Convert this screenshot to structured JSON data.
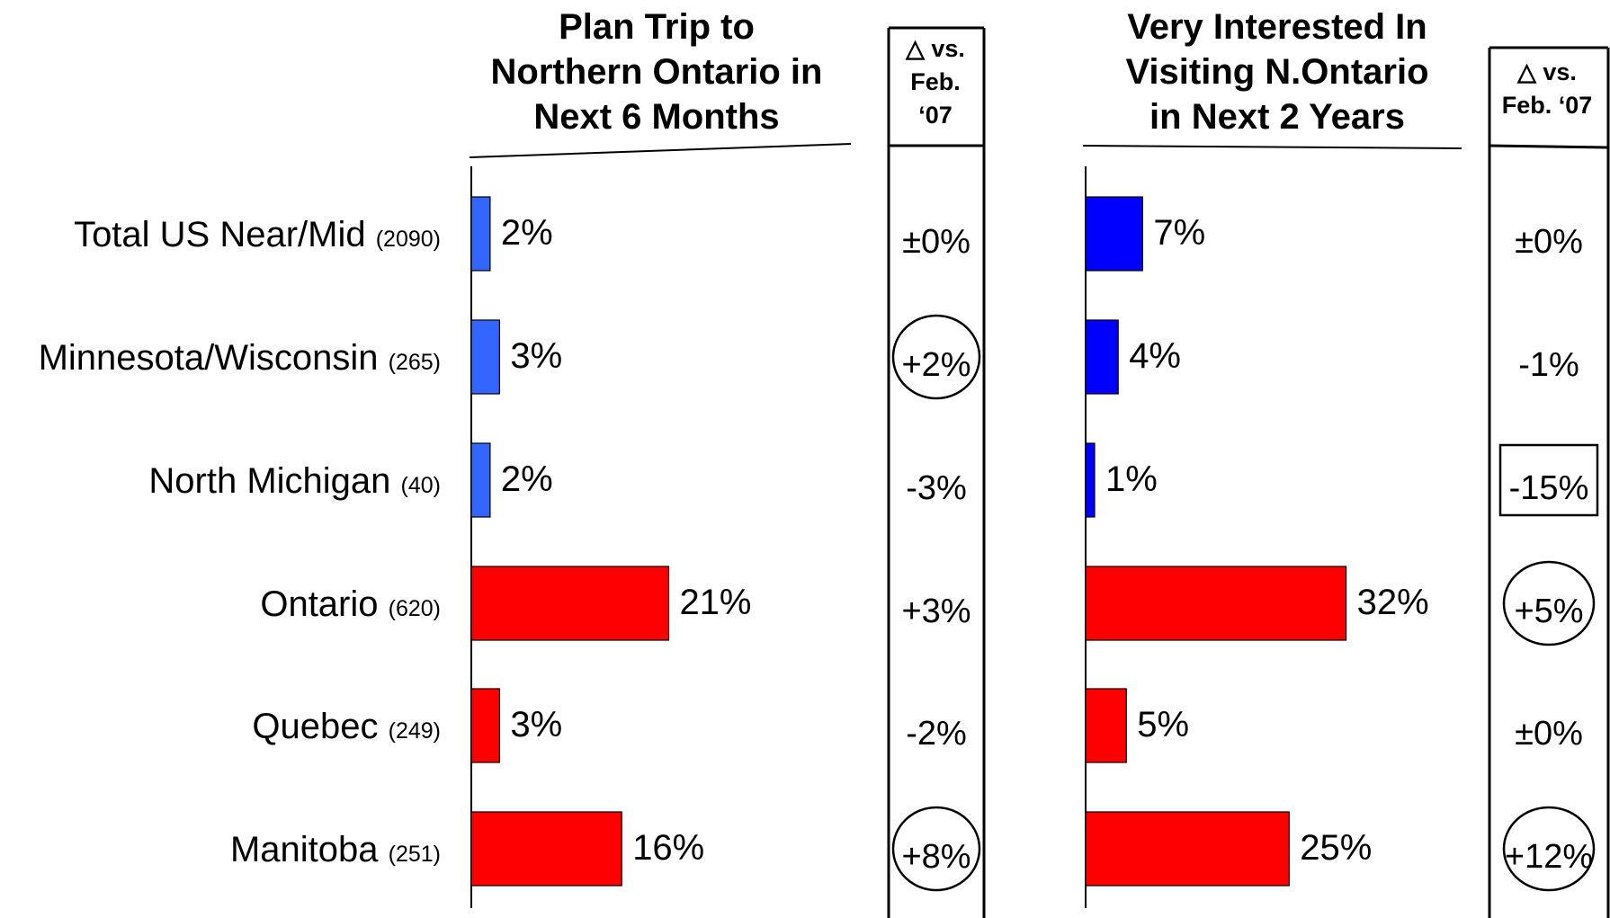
{
  "left_panel": {
    "title_lines": [
      "Plan Trip to",
      "Northern Ontario in",
      "Next 6 Months"
    ],
    "delta_header_lines": [
      "△ vs.",
      "Feb.",
      "‘07"
    ]
  },
  "right_panel": {
    "title_lines": [
      "Very Interested In",
      "Visiting N.Ontario",
      "in Next 2 Years"
    ],
    "delta_header_lines": [
      "△ vs.",
      "Feb. ‘07"
    ]
  },
  "colors": {
    "us_plan": "#3366ff",
    "us_interest": "#0000ff",
    "canada": "#ff0000"
  },
  "chart_data": [
    {
      "type": "bar",
      "orientation": "horizontal",
      "title": "Plan Trip to Northern Ontario in Next 6 Months",
      "categories": [
        "Total US Near/Mid",
        "Minnesota/Wisconsin",
        "North Michigan",
        "Ontario",
        "Quebec",
        "Manitoba"
      ],
      "sample_sizes": [
        "(2090)",
        "(265)",
        "(40)",
        "(620)",
        "(249)",
        "(251)"
      ],
      "values": [
        2,
        3,
        2,
        21,
        3,
        16
      ],
      "value_labels": [
        "2%",
        "3%",
        "2%",
        "21%",
        "3%",
        "16%"
      ],
      "bar_colors": [
        "#3366ff",
        "#3366ff",
        "#3366ff",
        "#ff0000",
        "#ff0000",
        "#ff0000"
      ],
      "change_header": "△ vs. Feb. ‘07",
      "changes": [
        "±0%",
        "+2%",
        "-3%",
        "+3%",
        "-2%",
        "+8%"
      ],
      "change_marks": [
        "none",
        "circle",
        "none",
        "none",
        "none",
        "circle"
      ]
    },
    {
      "type": "bar",
      "orientation": "horizontal",
      "title": "Very Interested In Visiting N.Ontario in Next 2 Years",
      "categories": [
        "Total US Near/Mid",
        "Minnesota/Wisconsin",
        "North Michigan",
        "Ontario",
        "Quebec",
        "Manitoba"
      ],
      "sample_sizes": [
        "(2090)",
        "(265)",
        "(40)",
        "(620)",
        "(249)",
        "(251)"
      ],
      "values": [
        7,
        4,
        1,
        32,
        5,
        25
      ],
      "value_labels": [
        "7%",
        "4%",
        "1%",
        "32%",
        "5%",
        "25%"
      ],
      "bar_colors": [
        "#0000ff",
        "#0000ff",
        "#0000ff",
        "#ff0000",
        "#ff0000",
        "#ff0000"
      ],
      "change_header": "△ vs. Feb. ‘07",
      "changes": [
        "±0%",
        "-1%",
        "-15%",
        "+5%",
        "±0%",
        "+12%"
      ],
      "change_marks": [
        "none",
        "none",
        "box",
        "circle",
        "none",
        "circle"
      ]
    }
  ]
}
